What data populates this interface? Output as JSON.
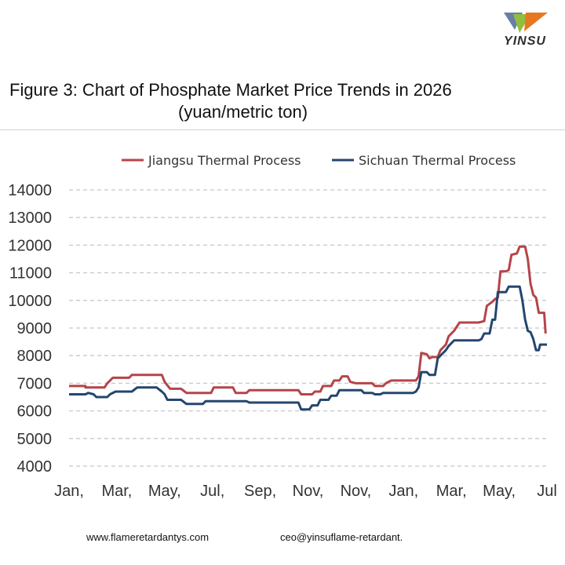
{
  "brand": {
    "logo_text": "YINSU"
  },
  "footer": {
    "website": "www.flameretardantys.com",
    "email": "ceo@yinsuflame-retardant."
  },
  "chart_data": {
    "type": "line",
    "title": "Figure 3: Chart of Phosphate Market Price Trends in 2026",
    "subtitle": "(yuan/metric ton)",
    "x_tick_labels": [
      "Jan,",
      "Mar,",
      "May,",
      "Jul,",
      "Sep,",
      "Nov,",
      "Nov,",
      "Jan,",
      "Mar,",
      "May,",
      "Jul"
    ],
    "xlim": [
      0,
      17.5
    ],
    "ylim": [
      4000,
      14000
    ],
    "y_ticks": [
      4000,
      5000,
      6000,
      7000,
      8000,
      9000,
      10000,
      11000,
      12000,
      13000,
      14000
    ],
    "grid": "horizontal dashed",
    "legend_position": "top",
    "series": [
      {
        "name": "Jiangsu Thermal Process",
        "color": "#b5444a",
        "points": [
          [
            0,
            6900
          ],
          [
            0.6,
            6900
          ],
          [
            0.6,
            6850
          ],
          [
            1.3,
            6850
          ],
          [
            1.4,
            7000
          ],
          [
            1.6,
            7200
          ],
          [
            2.2,
            7200
          ],
          [
            2.3,
            7300
          ],
          [
            3.4,
            7300
          ],
          [
            3.5,
            7050
          ],
          [
            3.7,
            6800
          ],
          [
            4.1,
            6800
          ],
          [
            4.3,
            6650
          ],
          [
            5.2,
            6650
          ],
          [
            5.3,
            6850
          ],
          [
            6.0,
            6850
          ],
          [
            6.1,
            6650
          ],
          [
            6.5,
            6650
          ],
          [
            6.6,
            6750
          ],
          [
            8.4,
            6750
          ],
          [
            8.5,
            6600
          ],
          [
            8.9,
            6600
          ],
          [
            9.0,
            6700
          ],
          [
            9.2,
            6700
          ],
          [
            9.3,
            6900
          ],
          [
            9.6,
            6900
          ],
          [
            9.7,
            7100
          ],
          [
            9.9,
            7100
          ],
          [
            10.0,
            7250
          ],
          [
            10.2,
            7250
          ],
          [
            10.3,
            7050
          ],
          [
            10.5,
            7000
          ],
          [
            11.1,
            7000
          ],
          [
            11.2,
            6900
          ],
          [
            11.5,
            6900
          ],
          [
            11.6,
            7000
          ],
          [
            11.8,
            7100
          ],
          [
            12.7,
            7100
          ],
          [
            12.8,
            7250
          ],
          [
            12.9,
            8100
          ],
          [
            13.1,
            8050
          ],
          [
            13.2,
            7900
          ],
          [
            13.3,
            7950
          ],
          [
            13.5,
            7950
          ],
          [
            13.6,
            8200
          ],
          [
            13.8,
            8400
          ],
          [
            13.9,
            8700
          ],
          [
            14.1,
            8900
          ],
          [
            14.3,
            9200
          ],
          [
            15.0,
            9200
          ],
          [
            15.2,
            9250
          ],
          [
            15.3,
            9800
          ],
          [
            15.5,
            9950
          ],
          [
            15.6,
            10050
          ],
          [
            15.7,
            10100
          ],
          [
            15.8,
            11050
          ],
          [
            16.0,
            11050
          ],
          [
            16.1,
            11100
          ],
          [
            16.2,
            11650
          ],
          [
            16.4,
            11700
          ],
          [
            16.5,
            11950
          ],
          [
            16.7,
            11950
          ],
          [
            16.8,
            11500
          ],
          [
            16.9,
            10600
          ],
          [
            17.0,
            10200
          ],
          [
            17.1,
            10100
          ],
          [
            17.2,
            9550
          ],
          [
            17.4,
            9550
          ],
          [
            17.45,
            8800
          ]
        ]
      },
      {
        "name": "Sichuan Thermal Process",
        "color": "#24466f",
        "points": [
          [
            0,
            6600
          ],
          [
            0.6,
            6600
          ],
          [
            0.7,
            6650
          ],
          [
            0.9,
            6600
          ],
          [
            1.0,
            6500
          ],
          [
            1.4,
            6500
          ],
          [
            1.5,
            6600
          ],
          [
            1.7,
            6700
          ],
          [
            2.3,
            6700
          ],
          [
            2.5,
            6850
          ],
          [
            3.2,
            6850
          ],
          [
            3.4,
            6700
          ],
          [
            3.5,
            6600
          ],
          [
            3.6,
            6400
          ],
          [
            4.1,
            6400
          ],
          [
            4.3,
            6250
          ],
          [
            4.9,
            6250
          ],
          [
            5.0,
            6350
          ],
          [
            6.5,
            6350
          ],
          [
            6.6,
            6300
          ],
          [
            8.4,
            6300
          ],
          [
            8.5,
            6050
          ],
          [
            8.8,
            6050
          ],
          [
            8.9,
            6200
          ],
          [
            9.1,
            6200
          ],
          [
            9.2,
            6400
          ],
          [
            9.5,
            6400
          ],
          [
            9.6,
            6550
          ],
          [
            9.8,
            6550
          ],
          [
            9.9,
            6750
          ],
          [
            10.7,
            6750
          ],
          [
            10.8,
            6650
          ],
          [
            11.1,
            6650
          ],
          [
            11.2,
            6600
          ],
          [
            11.4,
            6600
          ],
          [
            11.5,
            6650
          ],
          [
            12.6,
            6650
          ],
          [
            12.7,
            6700
          ],
          [
            12.8,
            6850
          ],
          [
            12.9,
            7400
          ],
          [
            13.1,
            7400
          ],
          [
            13.2,
            7300
          ],
          [
            13.4,
            7300
          ],
          [
            13.5,
            7900
          ],
          [
            13.6,
            8000
          ],
          [
            13.8,
            8200
          ],
          [
            13.9,
            8350
          ],
          [
            14.1,
            8550
          ],
          [
            15.0,
            8550
          ],
          [
            15.1,
            8600
          ],
          [
            15.2,
            8800
          ],
          [
            15.4,
            8800
          ],
          [
            15.5,
            9300
          ],
          [
            15.6,
            9300
          ],
          [
            15.7,
            10300
          ],
          [
            16.0,
            10300
          ],
          [
            16.1,
            10500
          ],
          [
            16.5,
            10500
          ],
          [
            16.6,
            10000
          ],
          [
            16.7,
            9300
          ],
          [
            16.8,
            8900
          ],
          [
            16.9,
            8850
          ],
          [
            17.0,
            8600
          ],
          [
            17.1,
            8200
          ],
          [
            17.2,
            8200
          ],
          [
            17.25,
            8400
          ],
          [
            17.5,
            8400
          ]
        ]
      }
    ]
  }
}
